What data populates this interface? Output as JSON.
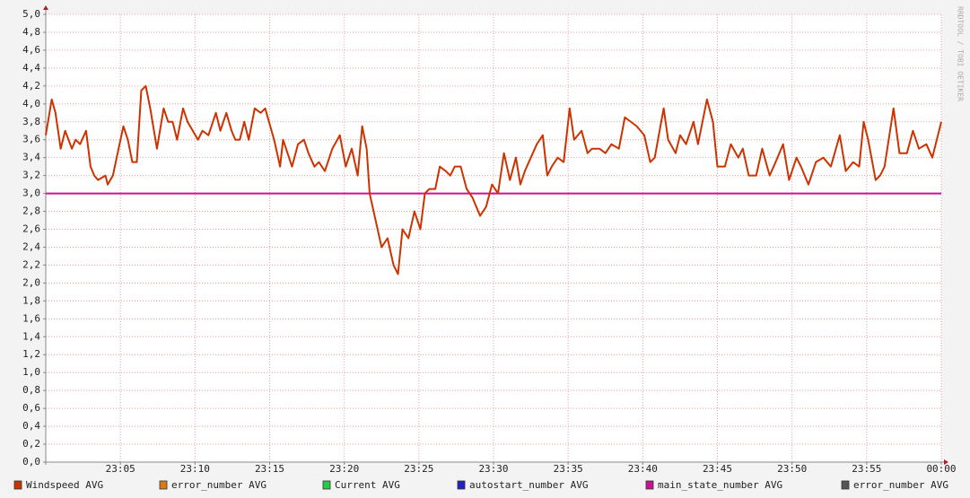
{
  "chart_data": {
    "type": "line",
    "watermark": "RRDTOOL / TOBI OETIKER",
    "xlim": [
      0,
      60
    ],
    "xticks": [
      {
        "value": 5,
        "label": "23:05"
      },
      {
        "value": 10,
        "label": "23:10"
      },
      {
        "value": 15,
        "label": "23:15"
      },
      {
        "value": 20,
        "label": "23:20"
      },
      {
        "value": 25,
        "label": "23:25"
      },
      {
        "value": 30,
        "label": "23:30"
      },
      {
        "value": 35,
        "label": "23:35"
      },
      {
        "value": 40,
        "label": "23:40"
      },
      {
        "value": 45,
        "label": "23:45"
      },
      {
        "value": 50,
        "label": "23:50"
      },
      {
        "value": 55,
        "label": "23:55"
      },
      {
        "value": 60,
        "label": "00:00"
      }
    ],
    "ylim": [
      0,
      5
    ],
    "yticks": [
      {
        "value": 0,
        "label": "0,0"
      },
      {
        "value": 0.2,
        "label": "0,2"
      },
      {
        "value": 0.4,
        "label": "0,4"
      },
      {
        "value": 0.6,
        "label": "0,6"
      },
      {
        "value": 0.8,
        "label": "0,8"
      },
      {
        "value": 1.0,
        "label": "1,0"
      },
      {
        "value": 1.2,
        "label": "1,2"
      },
      {
        "value": 1.4,
        "label": "1,4"
      },
      {
        "value": 1.6,
        "label": "1,6"
      },
      {
        "value": 1.8,
        "label": "1,8"
      },
      {
        "value": 2.0,
        "label": "2,0"
      },
      {
        "value": 2.2,
        "label": "2,2"
      },
      {
        "value": 2.4,
        "label": "2,4"
      },
      {
        "value": 2.6,
        "label": "2,6"
      },
      {
        "value": 2.8,
        "label": "2,8"
      },
      {
        "value": 3.0,
        "label": "3,0"
      },
      {
        "value": 3.2,
        "label": "3,2"
      },
      {
        "value": 3.4,
        "label": "3,4"
      },
      {
        "value": 3.6,
        "label": "3,6"
      },
      {
        "value": 3.8,
        "label": "3,8"
      },
      {
        "value": 4.0,
        "label": "4,0"
      },
      {
        "value": 4.2,
        "label": "4,2"
      },
      {
        "value": 4.4,
        "label": "4,4"
      },
      {
        "value": 4.6,
        "label": "4,6"
      },
      {
        "value": 4.8,
        "label": "4,8"
      },
      {
        "value": 5.0,
        "label": "5,0"
      }
    ],
    "grid": true,
    "series": [
      {
        "name": "Windspeed AVG",
        "color": "#cc3300",
        "x": [
          0,
          0.4,
          0.65,
          1,
          1.3,
          1.75,
          2,
          2.3,
          2.7,
          3,
          3.25,
          3.5,
          4,
          4.15,
          4.5,
          4.75,
          5.2,
          5.5,
          5.8,
          6.1,
          6.4,
          6.7,
          7,
          7.45,
          7.9,
          8.2,
          8.5,
          8.8,
          9.2,
          9.5,
          10.2,
          10.5,
          10.9,
          11.4,
          11.7,
          12.1,
          12.45,
          12.7,
          13,
          13.3,
          13.6,
          14,
          14.4,
          14.7,
          15.3,
          15.7,
          15.9,
          16.3,
          16.5,
          16.9,
          17.3,
          17.6,
          18,
          18.3,
          18.7,
          19.2,
          19.7,
          20.1,
          20.5,
          20.9,
          21.2,
          21.5,
          21.7,
          22.1,
          22.5,
          22.9,
          23.3,
          23.6,
          23.9,
          24.3,
          24.7,
          25.1,
          25.4,
          25.7,
          26.1,
          26.4,
          26.8,
          27.1,
          27.4,
          27.8,
          28.2,
          28.6,
          29.1,
          29.5,
          29.9,
          30.3,
          30.7,
          31.1,
          31.5,
          31.8,
          32.1,
          32.5,
          32.9,
          33.3,
          33.6,
          33.9,
          34.3,
          34.7,
          35.1,
          35.4,
          35.9,
          36.3,
          36.6,
          37.1,
          37.5,
          37.9,
          38.4,
          38.8,
          39.2,
          39.6,
          40.1,
          40.5,
          40.8,
          41.4,
          41.7,
          42.2,
          42.5,
          42.9,
          43.4,
          43.7,
          44.3,
          44.7,
          45,
          45.5,
          45.9,
          46.4,
          46.7,
          47.1,
          47.6,
          48,
          48.5,
          48.9,
          49.4,
          49.8,
          50.3,
          50.6,
          51.1,
          51.6,
          52.1,
          52.6,
          53.2,
          53.6,
          54.1,
          54.5,
          54.8,
          55.1,
          55.6,
          55.9,
          56.2,
          56.8,
          57.2,
          57.7,
          58.1,
          58.5,
          59,
          59.4,
          60
        ],
        "values": [
          3.65,
          4.05,
          3.9,
          3.5,
          3.7,
          3.5,
          3.6,
          3.55,
          3.7,
          3.3,
          3.2,
          3.15,
          3.2,
          3.1,
          3.2,
          3.4,
          3.75,
          3.6,
          3.35,
          3.35,
          4.15,
          4.2,
          3.95,
          3.5,
          3.95,
          3.8,
          3.8,
          3.6,
          3.95,
          3.8,
          3.6,
          3.7,
          3.65,
          3.9,
          3.7,
          3.9,
          3.7,
          3.6,
          3.6,
          3.8,
          3.6,
          3.95,
          3.9,
          3.95,
          3.6,
          3.3,
          3.6,
          3.4,
          3.3,
          3.55,
          3.6,
          3.45,
          3.3,
          3.35,
          3.25,
          3.5,
          3.65,
          3.3,
          3.5,
          3.2,
          3.75,
          3.5,
          3.0,
          2.7,
          2.4,
          2.5,
          2.2,
          2.1,
          2.6,
          2.5,
          2.8,
          2.6,
          3.0,
          3.05,
          3.05,
          3.3,
          3.25,
          3.2,
          3.3,
          3.3,
          3.05,
          2.95,
          2.75,
          2.85,
          3.1,
          3.0,
          3.45,
          3.15,
          3.4,
          3.1,
          3.25,
          3.4,
          3.55,
          3.65,
          3.2,
          3.3,
          3.4,
          3.35,
          3.95,
          3.6,
          3.7,
          3.45,
          3.5,
          3.5,
          3.45,
          3.55,
          3.5,
          3.85,
          3.8,
          3.75,
          3.65,
          3.35,
          3.4,
          3.95,
          3.6,
          3.45,
          3.65,
          3.55,
          3.8,
          3.55,
          4.05,
          3.8,
          3.3,
          3.3,
          3.55,
          3.4,
          3.5,
          3.2,
          3.2,
          3.5,
          3.2,
          3.35,
          3.55,
          3.15,
          3.4,
          3.3,
          3.1,
          3.35,
          3.4,
          3.3,
          3.65,
          3.25,
          3.35,
          3.3,
          3.8,
          3.6,
          3.15,
          3.2,
          3.3,
          3.95,
          3.45,
          3.45,
          3.7,
          3.5,
          3.55,
          3.4,
          3.8
        ]
      },
      {
        "name": "error_number AVG",
        "color": "#e07a10"
      },
      {
        "name": "Current AVG",
        "color": "#22cc44"
      },
      {
        "name": "autostart_number AVG",
        "color": "#2222cc"
      },
      {
        "name": "main_state_number AVG",
        "color": "#cc1199",
        "x": [
          0,
          60
        ],
        "values": [
          3,
          3
        ]
      },
      {
        "name": "error_number AVG",
        "color": "#555555"
      }
    ]
  }
}
